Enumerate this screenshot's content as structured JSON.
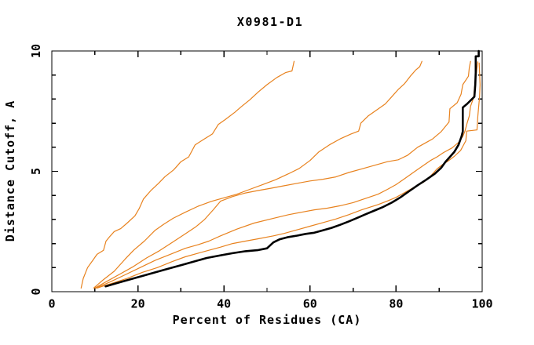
{
  "window": {
    "background": "#ffffff"
  },
  "chart_data": {
    "type": "line",
    "title": "X0981-D1",
    "xlabel": "Percent of Residues (CA)",
    "ylabel": "Distance Cutoff, A",
    "xlim": [
      0,
      100
    ],
    "ylim": [
      0,
      10
    ],
    "x_major_ticks": [
      0,
      20,
      40,
      60,
      80,
      100
    ],
    "x_minor_ticks": [
      10,
      30,
      50,
      70,
      90
    ],
    "y_major_ticks": [
      0,
      5,
      10
    ],
    "y_minor_ticks": [
      1,
      2,
      3,
      4,
      6,
      7,
      8,
      9
    ],
    "grid": false,
    "frame": "box-with-inward-mirrored-ticks",
    "legend": "none",
    "colors": {
      "model_curves": "#e8821e",
      "black_curve": "#000000",
      "frame": "#000000"
    },
    "series": [
      {
        "name": "model-curve-1",
        "color": "#e8821e",
        "width": 1.2,
        "points": [
          [
            6.8,
            0.15
          ],
          [
            7.3,
            0.55
          ],
          [
            8.3,
            1.0
          ],
          [
            9.5,
            1.3
          ],
          [
            10.5,
            1.55
          ],
          [
            12,
            1.72
          ],
          [
            12.6,
            2.1
          ],
          [
            13.5,
            2.3
          ],
          [
            14.5,
            2.5
          ],
          [
            16,
            2.62
          ],
          [
            17.5,
            2.85
          ],
          [
            19.3,
            3.15
          ],
          [
            20.3,
            3.45
          ],
          [
            21.3,
            3.85
          ],
          [
            23,
            4.2
          ],
          [
            24.8,
            4.5
          ],
          [
            26.3,
            4.78
          ],
          [
            28.3,
            5.06
          ],
          [
            30,
            5.4
          ],
          [
            31.8,
            5.6
          ],
          [
            33.3,
            6.1
          ],
          [
            35.3,
            6.33
          ],
          [
            37.3,
            6.55
          ],
          [
            38.7,
            6.95
          ],
          [
            40.3,
            7.15
          ],
          [
            42.5,
            7.45
          ],
          [
            44,
            7.68
          ],
          [
            46,
            7.97
          ],
          [
            48,
            8.3
          ],
          [
            50,
            8.6
          ],
          [
            52.3,
            8.9
          ],
          [
            54.3,
            9.1
          ],
          [
            55.8,
            9.17
          ],
          [
            56.3,
            9.57
          ]
        ]
      },
      {
        "name": "model-curve-2",
        "color": "#e8821e",
        "width": 1.2,
        "points": [
          [
            9.7,
            0.15
          ],
          [
            12,
            0.5
          ],
          [
            14.5,
            0.85
          ],
          [
            17,
            1.35
          ],
          [
            19,
            1.72
          ],
          [
            21.5,
            2.1
          ],
          [
            24,
            2.55
          ],
          [
            26,
            2.8
          ],
          [
            28.2,
            3.05
          ],
          [
            31,
            3.3
          ],
          [
            34,
            3.55
          ],
          [
            37,
            3.75
          ],
          [
            40,
            3.9
          ],
          [
            43,
            4.05
          ],
          [
            46,
            4.25
          ],
          [
            49,
            4.45
          ],
          [
            52,
            4.65
          ],
          [
            55,
            4.9
          ],
          [
            57.5,
            5.12
          ],
          [
            60,
            5.45
          ],
          [
            62,
            5.8
          ],
          [
            64.5,
            6.1
          ],
          [
            67,
            6.35
          ],
          [
            69.5,
            6.55
          ],
          [
            71.3,
            6.67
          ],
          [
            71.8,
            7.0
          ],
          [
            73.5,
            7.3
          ],
          [
            75.5,
            7.55
          ],
          [
            77.5,
            7.8
          ],
          [
            79,
            8.1
          ],
          [
            80.5,
            8.4
          ],
          [
            82,
            8.65
          ],
          [
            83.3,
            8.95
          ],
          [
            84.5,
            9.2
          ],
          [
            85.5,
            9.35
          ],
          [
            86,
            9.57
          ]
        ]
      },
      {
        "name": "model-curve-3",
        "color": "#e8821e",
        "width": 1.2,
        "points": [
          [
            10,
            0.15
          ],
          [
            13,
            0.45
          ],
          [
            16,
            0.75
          ],
          [
            19,
            1.05
          ],
          [
            22,
            1.4
          ],
          [
            25,
            1.7
          ],
          [
            28,
            2.05
          ],
          [
            31,
            2.4
          ],
          [
            33.5,
            2.7
          ],
          [
            35.5,
            3.0
          ],
          [
            37.5,
            3.4
          ],
          [
            39.2,
            3.76
          ],
          [
            42,
            3.95
          ],
          [
            45,
            4.1
          ],
          [
            47.8,
            4.2
          ],
          [
            51,
            4.3
          ],
          [
            54,
            4.4
          ],
          [
            57,
            4.5
          ],
          [
            60,
            4.6
          ],
          [
            63,
            4.67
          ],
          [
            66,
            4.77
          ],
          [
            69,
            4.95
          ],
          [
            72,
            5.1
          ],
          [
            75,
            5.25
          ],
          [
            78,
            5.4
          ],
          [
            80.5,
            5.48
          ],
          [
            82.7,
            5.67
          ],
          [
            85,
            6.0
          ],
          [
            87,
            6.2
          ],
          [
            88.5,
            6.35
          ],
          [
            90.5,
            6.65
          ],
          [
            92.3,
            7.05
          ],
          [
            92.5,
            7.6
          ],
          [
            94.2,
            7.85
          ],
          [
            95.1,
            8.2
          ],
          [
            95.5,
            8.6
          ],
          [
            96.8,
            8.95
          ],
          [
            97,
            9.3
          ],
          [
            97.3,
            9.57
          ]
        ]
      },
      {
        "name": "model-curve-4",
        "color": "#e8821e",
        "width": 1.2,
        "points": [
          [
            10.2,
            0.15
          ],
          [
            13.5,
            0.4
          ],
          [
            17,
            0.7
          ],
          [
            20.5,
            1.0
          ],
          [
            24,
            1.3
          ],
          [
            27.5,
            1.55
          ],
          [
            31,
            1.8
          ],
          [
            34,
            1.95
          ],
          [
            36.5,
            2.1
          ],
          [
            39.2,
            2.32
          ],
          [
            43,
            2.6
          ],
          [
            47,
            2.85
          ],
          [
            51.5,
            3.05
          ],
          [
            55,
            3.2
          ],
          [
            58,
            3.3
          ],
          [
            61,
            3.4
          ],
          [
            64,
            3.47
          ],
          [
            67,
            3.57
          ],
          [
            70,
            3.7
          ],
          [
            72.5,
            3.85
          ],
          [
            75.8,
            4.05
          ],
          [
            78,
            4.25
          ],
          [
            80,
            4.45
          ],
          [
            82,
            4.7
          ],
          [
            84,
            4.95
          ],
          [
            86.4,
            5.25
          ],
          [
            88,
            5.45
          ],
          [
            89.5,
            5.6
          ],
          [
            91,
            5.78
          ],
          [
            93,
            5.97
          ],
          [
            94.5,
            6.2
          ],
          [
            95.5,
            6.45
          ],
          [
            96,
            6.67
          ],
          [
            96.5,
            7.0
          ],
          [
            97,
            7.3
          ],
          [
            97.3,
            7.7
          ],
          [
            98,
            8.05
          ],
          [
            98.3,
            8.6
          ],
          [
            98.6,
            9.0
          ],
          [
            98.8,
            9.3
          ],
          [
            99,
            9.55
          ]
        ]
      },
      {
        "name": "model-curve-5",
        "color": "#e8821e",
        "width": 1.2,
        "points": [
          [
            10.5,
            0.15
          ],
          [
            14,
            0.35
          ],
          [
            17.5,
            0.55
          ],
          [
            21,
            0.8
          ],
          [
            24.5,
            1.0
          ],
          [
            28,
            1.25
          ],
          [
            31,
            1.45
          ],
          [
            34,
            1.6
          ],
          [
            36.5,
            1.72
          ],
          [
            39.2,
            1.85
          ],
          [
            42,
            2.0
          ],
          [
            45,
            2.1
          ],
          [
            48,
            2.2
          ],
          [
            51.5,
            2.32
          ],
          [
            54,
            2.42
          ],
          [
            57,
            2.57
          ],
          [
            60,
            2.72
          ],
          [
            63,
            2.87
          ],
          [
            66,
            3.02
          ],
          [
            69,
            3.2
          ],
          [
            72,
            3.4
          ],
          [
            75.8,
            3.62
          ],
          [
            78,
            3.77
          ],
          [
            80,
            3.92
          ],
          [
            82,
            4.12
          ],
          [
            84,
            4.32
          ],
          [
            86.4,
            4.55
          ],
          [
            88,
            4.8
          ],
          [
            89.5,
            5.1
          ],
          [
            90.8,
            5.28
          ],
          [
            92,
            5.42
          ],
          [
            93.5,
            5.62
          ],
          [
            95,
            5.87
          ],
          [
            96.2,
            6.27
          ],
          [
            96.4,
            6.67
          ],
          [
            98.8,
            6.72
          ],
          [
            99,
            7.3
          ],
          [
            99.2,
            7.7
          ],
          [
            99.4,
            8.1
          ],
          [
            99.5,
            8.6
          ],
          [
            99.4,
            9.1
          ],
          [
            99.3,
            9.5
          ]
        ]
      },
      {
        "name": "black-curve",
        "color": "#000000",
        "width": 2.6,
        "points": [
          [
            12.5,
            0.22
          ],
          [
            15,
            0.35
          ],
          [
            18,
            0.5
          ],
          [
            21,
            0.65
          ],
          [
            24,
            0.8
          ],
          [
            27,
            0.95
          ],
          [
            30,
            1.1
          ],
          [
            33,
            1.25
          ],
          [
            36,
            1.4
          ],
          [
            39,
            1.5
          ],
          [
            42,
            1.6
          ],
          [
            45,
            1.68
          ],
          [
            48,
            1.73
          ],
          [
            50,
            1.8
          ],
          [
            51.5,
            2.05
          ],
          [
            53,
            2.18
          ],
          [
            55,
            2.27
          ],
          [
            57,
            2.33
          ],
          [
            59,
            2.4
          ],
          [
            61,
            2.45
          ],
          [
            63,
            2.55
          ],
          [
            65,
            2.65
          ],
          [
            67,
            2.78
          ],
          [
            69,
            2.92
          ],
          [
            71,
            3.07
          ],
          [
            73,
            3.22
          ],
          [
            75,
            3.37
          ],
          [
            77,
            3.52
          ],
          [
            79,
            3.7
          ],
          [
            81,
            3.92
          ],
          [
            83,
            4.17
          ],
          [
            85,
            4.42
          ],
          [
            87,
            4.65
          ],
          [
            89,
            4.9
          ],
          [
            90.5,
            5.15
          ],
          [
            91.5,
            5.4
          ],
          [
            92.5,
            5.6
          ],
          [
            93.5,
            5.8
          ],
          [
            94.5,
            6.1
          ],
          [
            95.2,
            6.45
          ],
          [
            95.5,
            6.65
          ],
          [
            95.5,
            7.65
          ],
          [
            96.5,
            7.8
          ],
          [
            98.2,
            8.1
          ],
          [
            98.4,
            8.6
          ],
          [
            98.5,
            9.1
          ],
          [
            98.5,
            9.78
          ],
          [
            99.2,
            9.78
          ],
          [
            99.2,
            10
          ]
        ]
      }
    ]
  }
}
